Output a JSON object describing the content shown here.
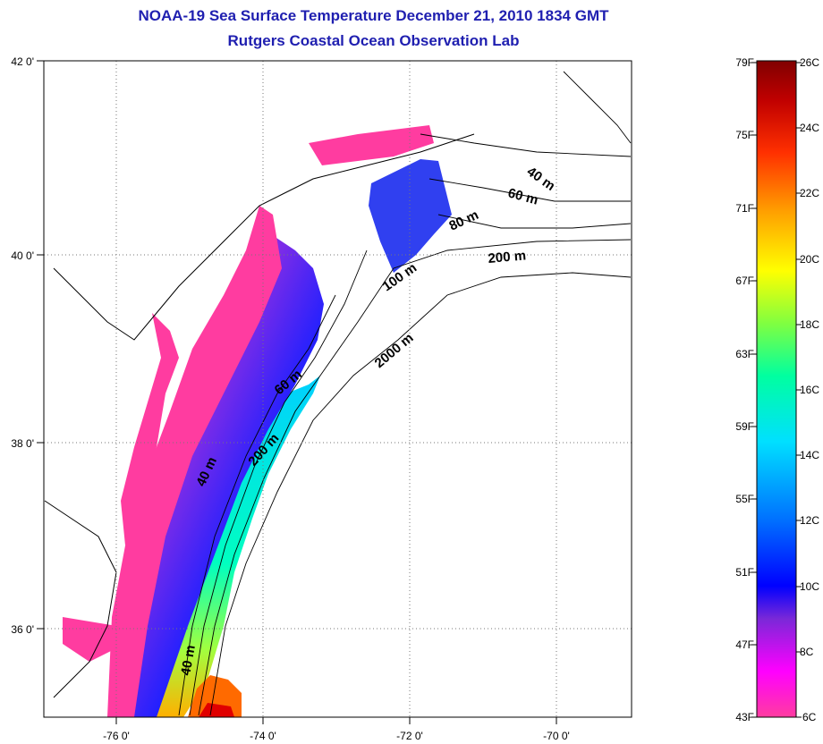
{
  "title_line1": "NOAA-19 Sea Surface Temperature December 21, 2010 1834 GMT",
  "title_line2": "Rutgers Coastal Ocean Observation Lab",
  "map": {
    "lat_labels": [
      "42 0'",
      "40 0'",
      "38 0'",
      "36 0'"
    ],
    "lon_labels": [
      "-76 0'",
      "-74 0'",
      "-72 0'",
      "-70 0'"
    ],
    "bathymetry_labels": [
      "40 m",
      "60 m",
      "80 m",
      "200 m",
      "100 m",
      "60 m",
      "2000 m",
      "200 m",
      "40 m",
      "40 m"
    ]
  },
  "colorbar": {
    "fahrenheit": [
      "79F",
      "75F",
      "71F",
      "67F",
      "63F",
      "59F",
      "55F",
      "51F",
      "47F",
      "43F"
    ],
    "celsius": [
      "26C",
      "24C",
      "22C",
      "20C",
      "18C",
      "16C",
      "14C",
      "12C",
      "10C",
      "8C",
      "6C"
    ],
    "colors": [
      "#ff3ca0",
      "#ff00ff",
      "#7a28d8",
      "#0000ff",
      "#0070ff",
      "#00e0ff",
      "#00ffa0",
      "#80ff40",
      "#ffff00",
      "#ffa000",
      "#ff3000",
      "#c00000",
      "#800000"
    ]
  },
  "colors": {
    "title": "#1f1fb0",
    "nearshore": "#ff3ca0",
    "cold": "#0000ff",
    "warm": "#ff3000"
  }
}
